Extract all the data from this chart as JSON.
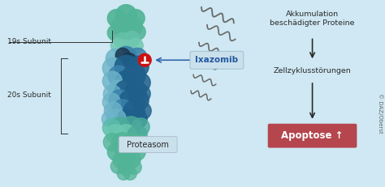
{
  "bg_color": "#cfe8f3",
  "label_19s": "19s Subunit",
  "label_20s": "20s Subunit",
  "label_proteasom": "Proteasom",
  "label_ixazomib": "Ixazomib",
  "label_akkumulation": "Akkumulation\nbeschädigter Proteine",
  "label_zell": "Zellzyklusstörungen",
  "label_apoptose": "Apoptose ↑",
  "label_credit": "© DAZ/Oberst",
  "color_19s_cap": "#52b496",
  "color_20s_dark": "#1f5f8b",
  "color_20s_mid": "#3a82ab",
  "color_20s_light": "#6db3c8",
  "color_teal": "#4aab9a",
  "color_navy": "#1a3850",
  "color_apoptose_box": "#b5464e",
  "color_ixazomib_text": "#2258a0",
  "color_arrow_blue": "#3366aa",
  "color_arrow_dark": "#2a2a2a",
  "color_inhibitor": "#cc1111",
  "color_text": "#2a2a2a",
  "color_white": "#ffffff",
  "color_label_box": "#cae0eb"
}
